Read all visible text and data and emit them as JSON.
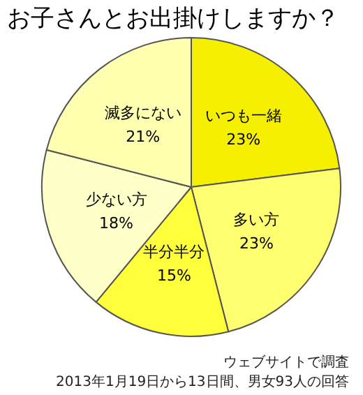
{
  "chart_data": {
    "type": "pie",
    "title": "お子さんとお出掛けしますか？",
    "categories": [
      "いつも一緒",
      "多い方",
      "半分半分",
      "少ない方",
      "滅多にない"
    ],
    "values": [
      23,
      23,
      15,
      18,
      21
    ],
    "value_labels": [
      "23%",
      "23%",
      "15%",
      "18%",
      "21%"
    ],
    "colors": [
      "#f5f000",
      "#ffff70",
      "#ffff3c",
      "#ffffc8",
      "#ffffb0"
    ],
    "annotations": [
      "ウェブサイトで調査",
      "2013年1月19日から13日間、男女93人の回答"
    ]
  }
}
